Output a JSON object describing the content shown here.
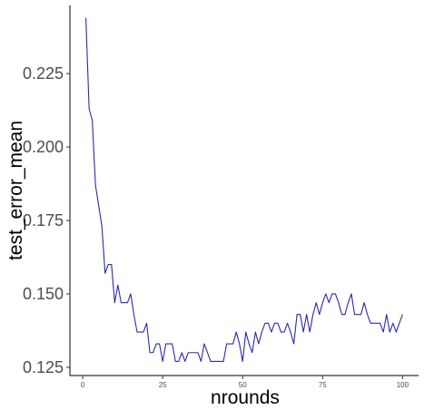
{
  "chart_data": {
    "type": "line",
    "title": "",
    "xlabel": "nrounds",
    "ylabel": "test_error_mean",
    "xlim": [
      -4,
      105
    ],
    "ylim": [
      0.1222,
      0.2482
    ],
    "x_ticks": [
      0,
      25,
      50,
      75,
      100
    ],
    "y_ticks": [
      0.125,
      0.15,
      0.175,
      0.2,
      0.225
    ],
    "y_tick_labels": [
      "0.125",
      "0.150",
      "0.175",
      "0.200",
      "0.225"
    ],
    "grid": false,
    "legend": "none",
    "line_color": "#2a2ab0",
    "series": [
      {
        "x": [
          1,
          2,
          3,
          4,
          5,
          6,
          7,
          8,
          9,
          10,
          11,
          12,
          13,
          14,
          15,
          16,
          17,
          18,
          19,
          20,
          21,
          22,
          23,
          24,
          25,
          26,
          27,
          28,
          29,
          30,
          31,
          32,
          33,
          34,
          35,
          36,
          37,
          38,
          39,
          40,
          41,
          42,
          43,
          44,
          45,
          46,
          47,
          48,
          49,
          50,
          51,
          52,
          53,
          54,
          55,
          56,
          57,
          58,
          59,
          60,
          61,
          62,
          63,
          64,
          65,
          66,
          67,
          68,
          69,
          70,
          71,
          72,
          73,
          74,
          75,
          76,
          77,
          78,
          79,
          80,
          81,
          82,
          83,
          84,
          85,
          86,
          87,
          88,
          89,
          90,
          91,
          92,
          93,
          94,
          95,
          96,
          97,
          98,
          99,
          100
        ],
        "values": [
          0.244,
          0.213,
          0.209,
          0.187,
          0.18,
          0.173,
          0.157,
          0.16,
          0.16,
          0.147,
          0.153,
          0.147,
          0.147,
          0.147,
          0.15,
          0.143,
          0.137,
          0.137,
          0.137,
          0.14,
          0.13,
          0.13,
          0.133,
          0.133,
          0.127,
          0.133,
          0.133,
          0.133,
          0.127,
          0.127,
          0.13,
          0.127,
          0.13,
          0.13,
          0.13,
          0.13,
          0.127,
          0.133,
          0.13,
          0.127,
          0.127,
          0.127,
          0.127,
          0.127,
          0.133,
          0.133,
          0.133,
          0.137,
          0.133,
          0.127,
          0.137,
          0.133,
          0.13,
          0.137,
          0.133,
          0.137,
          0.14,
          0.14,
          0.137,
          0.14,
          0.14,
          0.137,
          0.137,
          0.14,
          0.137,
          0.133,
          0.143,
          0.143,
          0.137,
          0.143,
          0.137,
          0.143,
          0.147,
          0.143,
          0.147,
          0.15,
          0.147,
          0.15,
          0.15,
          0.147,
          0.143,
          0.143,
          0.147,
          0.15,
          0.143,
          0.143,
          0.143,
          0.147,
          0.143,
          0.14,
          0.14,
          0.14,
          0.14,
          0.137,
          0.143,
          0.137,
          0.14,
          0.137,
          0.14,
          0.143
        ]
      }
    ]
  }
}
